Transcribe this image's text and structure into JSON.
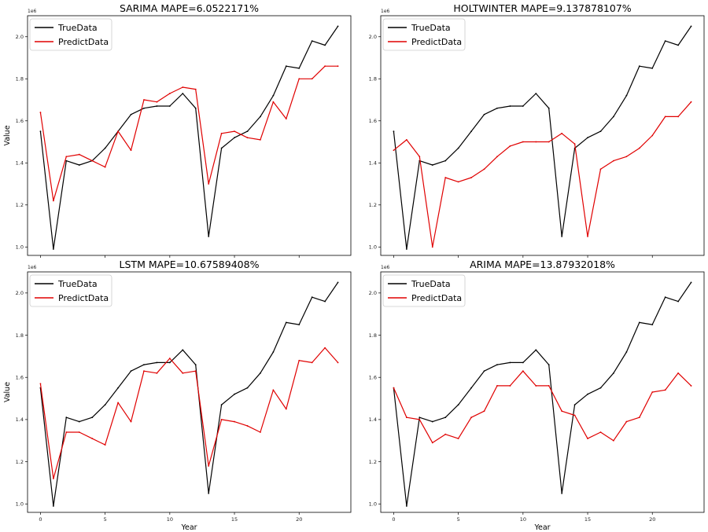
{
  "figure": {
    "background": "#ffffff"
  },
  "chart_data": [
    {
      "type": "line",
      "title": "SARIMA MAPE=6.0522171%",
      "xlabel": "",
      "ylabel": "Value",
      "y_scale_label": "1e6",
      "x": [
        0,
        1,
        2,
        3,
        4,
        5,
        6,
        7,
        8,
        9,
        10,
        11,
        12,
        13,
        14,
        15,
        16,
        17,
        18,
        19,
        20,
        21,
        22,
        23
      ],
      "xlim": [
        -1,
        24
      ],
      "ylim": [
        0.96,
        2.1
      ],
      "xticks": [
        0,
        5,
        10,
        15,
        20
      ],
      "xticklabels": [],
      "yticks": [
        1.0,
        1.2,
        1.4,
        1.6,
        1.8,
        2.0
      ],
      "yticklabels": [
        "1.0",
        "1.2",
        "1.4",
        "1.6",
        "1.8",
        "2.0"
      ],
      "legend_position": "top-left",
      "series": [
        {
          "name": "TrueData",
          "color": "#000000",
          "values": [
            1.55,
            0.99,
            1.41,
            1.39,
            1.41,
            1.47,
            1.55,
            1.63,
            1.66,
            1.67,
            1.67,
            1.73,
            1.66,
            1.05,
            1.47,
            1.52,
            1.55,
            1.62,
            1.72,
            1.86,
            1.85,
            1.98,
            1.96,
            2.05
          ]
        },
        {
          "name": "PredictData",
          "color": "#e00000",
          "values": [
            1.64,
            1.22,
            1.43,
            1.44,
            1.41,
            1.38,
            1.55,
            1.46,
            1.7,
            1.69,
            1.73,
            1.76,
            1.75,
            1.3,
            1.54,
            1.55,
            1.52,
            1.51,
            1.69,
            1.61,
            1.8,
            1.8,
            1.86,
            1.86
          ]
        }
      ]
    },
    {
      "type": "line",
      "title": "HOLTWINTER MAPE=9.137878107%",
      "xlabel": "",
      "ylabel": "",
      "y_scale_label": "1e6",
      "x": [
        0,
        1,
        2,
        3,
        4,
        5,
        6,
        7,
        8,
        9,
        10,
        11,
        12,
        13,
        14,
        15,
        16,
        17,
        18,
        19,
        20,
        21,
        22,
        23
      ],
      "xlim": [
        -1,
        24
      ],
      "ylim": [
        0.96,
        2.1
      ],
      "xticks": [
        0,
        5,
        10,
        15,
        20
      ],
      "xticklabels": [],
      "yticks": [
        1.0,
        1.2,
        1.4,
        1.6,
        1.8,
        2.0
      ],
      "yticklabels": [
        "1.0",
        "1.2",
        "1.4",
        "1.6",
        "1.8",
        "2.0"
      ],
      "legend_position": "top-left",
      "series": [
        {
          "name": "TrueData",
          "color": "#000000",
          "values": [
            1.55,
            0.99,
            1.41,
            1.39,
            1.41,
            1.47,
            1.55,
            1.63,
            1.66,
            1.67,
            1.67,
            1.73,
            1.66,
            1.05,
            1.47,
            1.52,
            1.55,
            1.62,
            1.72,
            1.86,
            1.85,
            1.98,
            1.96,
            2.05
          ]
        },
        {
          "name": "PredictData",
          "color": "#e00000",
          "values": [
            1.46,
            1.51,
            1.43,
            1.0,
            1.33,
            1.31,
            1.33,
            1.37,
            1.43,
            1.48,
            1.5,
            1.5,
            1.5,
            1.54,
            1.49,
            1.05,
            1.37,
            1.41,
            1.43,
            1.47,
            1.53,
            1.62,
            1.62,
            1.69
          ]
        }
      ]
    },
    {
      "type": "line",
      "title": "LSTM MAPE=10.67589408%",
      "xlabel": "Year",
      "ylabel": "Value",
      "y_scale_label": "1e6",
      "x": [
        0,
        1,
        2,
        3,
        4,
        5,
        6,
        7,
        8,
        9,
        10,
        11,
        12,
        13,
        14,
        15,
        16,
        17,
        18,
        19,
        20,
        21,
        22,
        23
      ],
      "xlim": [
        -1,
        24
      ],
      "ylim": [
        0.96,
        2.1
      ],
      "xticks": [
        0,
        5,
        10,
        15,
        20
      ],
      "xticklabels": [
        "0",
        "5",
        "10",
        "15",
        "20"
      ],
      "yticks": [
        1.0,
        1.2,
        1.4,
        1.6,
        1.8,
        2.0
      ],
      "yticklabels": [
        "1.0",
        "1.2",
        "1.4",
        "1.6",
        "1.8",
        "2.0"
      ],
      "legend_position": "top-left",
      "series": [
        {
          "name": "TrueData",
          "color": "#000000",
          "values": [
            1.55,
            0.99,
            1.41,
            1.39,
            1.41,
            1.47,
            1.55,
            1.63,
            1.66,
            1.67,
            1.67,
            1.73,
            1.66,
            1.05,
            1.47,
            1.52,
            1.55,
            1.62,
            1.72,
            1.86,
            1.85,
            1.98,
            1.96,
            2.05
          ]
        },
        {
          "name": "PredictData",
          "color": "#e00000",
          "values": [
            1.57,
            1.12,
            1.34,
            1.34,
            1.31,
            1.28,
            1.48,
            1.39,
            1.63,
            1.62,
            1.69,
            1.62,
            1.63,
            1.18,
            1.4,
            1.39,
            1.37,
            1.34,
            1.54,
            1.45,
            1.68,
            1.67,
            1.74,
            1.67
          ]
        }
      ]
    },
    {
      "type": "line",
      "title": "ARIMA MAPE=13.87932018%",
      "xlabel": "Year",
      "ylabel": "",
      "y_scale_label": "1e6",
      "x": [
        0,
        1,
        2,
        3,
        4,
        5,
        6,
        7,
        8,
        9,
        10,
        11,
        12,
        13,
        14,
        15,
        16,
        17,
        18,
        19,
        20,
        21,
        22,
        23
      ],
      "xlim": [
        -1,
        24
      ],
      "ylim": [
        0.96,
        2.1
      ],
      "xticks": [
        0,
        5,
        10,
        15,
        20
      ],
      "xticklabels": [
        "0",
        "5",
        "10",
        "15",
        "20"
      ],
      "yticks": [
        1.0,
        1.2,
        1.4,
        1.6,
        1.8,
        2.0
      ],
      "yticklabels": [
        "1.0",
        "1.2",
        "1.4",
        "1.6",
        "1.8",
        "2.0"
      ],
      "legend_position": "top-left",
      "series": [
        {
          "name": "TrueData",
          "color": "#000000",
          "values": [
            1.55,
            0.99,
            1.41,
            1.39,
            1.41,
            1.47,
            1.55,
            1.63,
            1.66,
            1.67,
            1.67,
            1.73,
            1.66,
            1.05,
            1.47,
            1.52,
            1.55,
            1.62,
            1.72,
            1.86,
            1.85,
            1.98,
            1.96,
            2.05
          ]
        },
        {
          "name": "PredictData",
          "color": "#e00000",
          "values": [
            1.55,
            1.41,
            1.4,
            1.29,
            1.33,
            1.31,
            1.41,
            1.44,
            1.56,
            1.56,
            1.63,
            1.56,
            1.56,
            1.44,
            1.42,
            1.31,
            1.34,
            1.3,
            1.39,
            1.41,
            1.53,
            1.54,
            1.62,
            1.56
          ]
        }
      ]
    }
  ]
}
